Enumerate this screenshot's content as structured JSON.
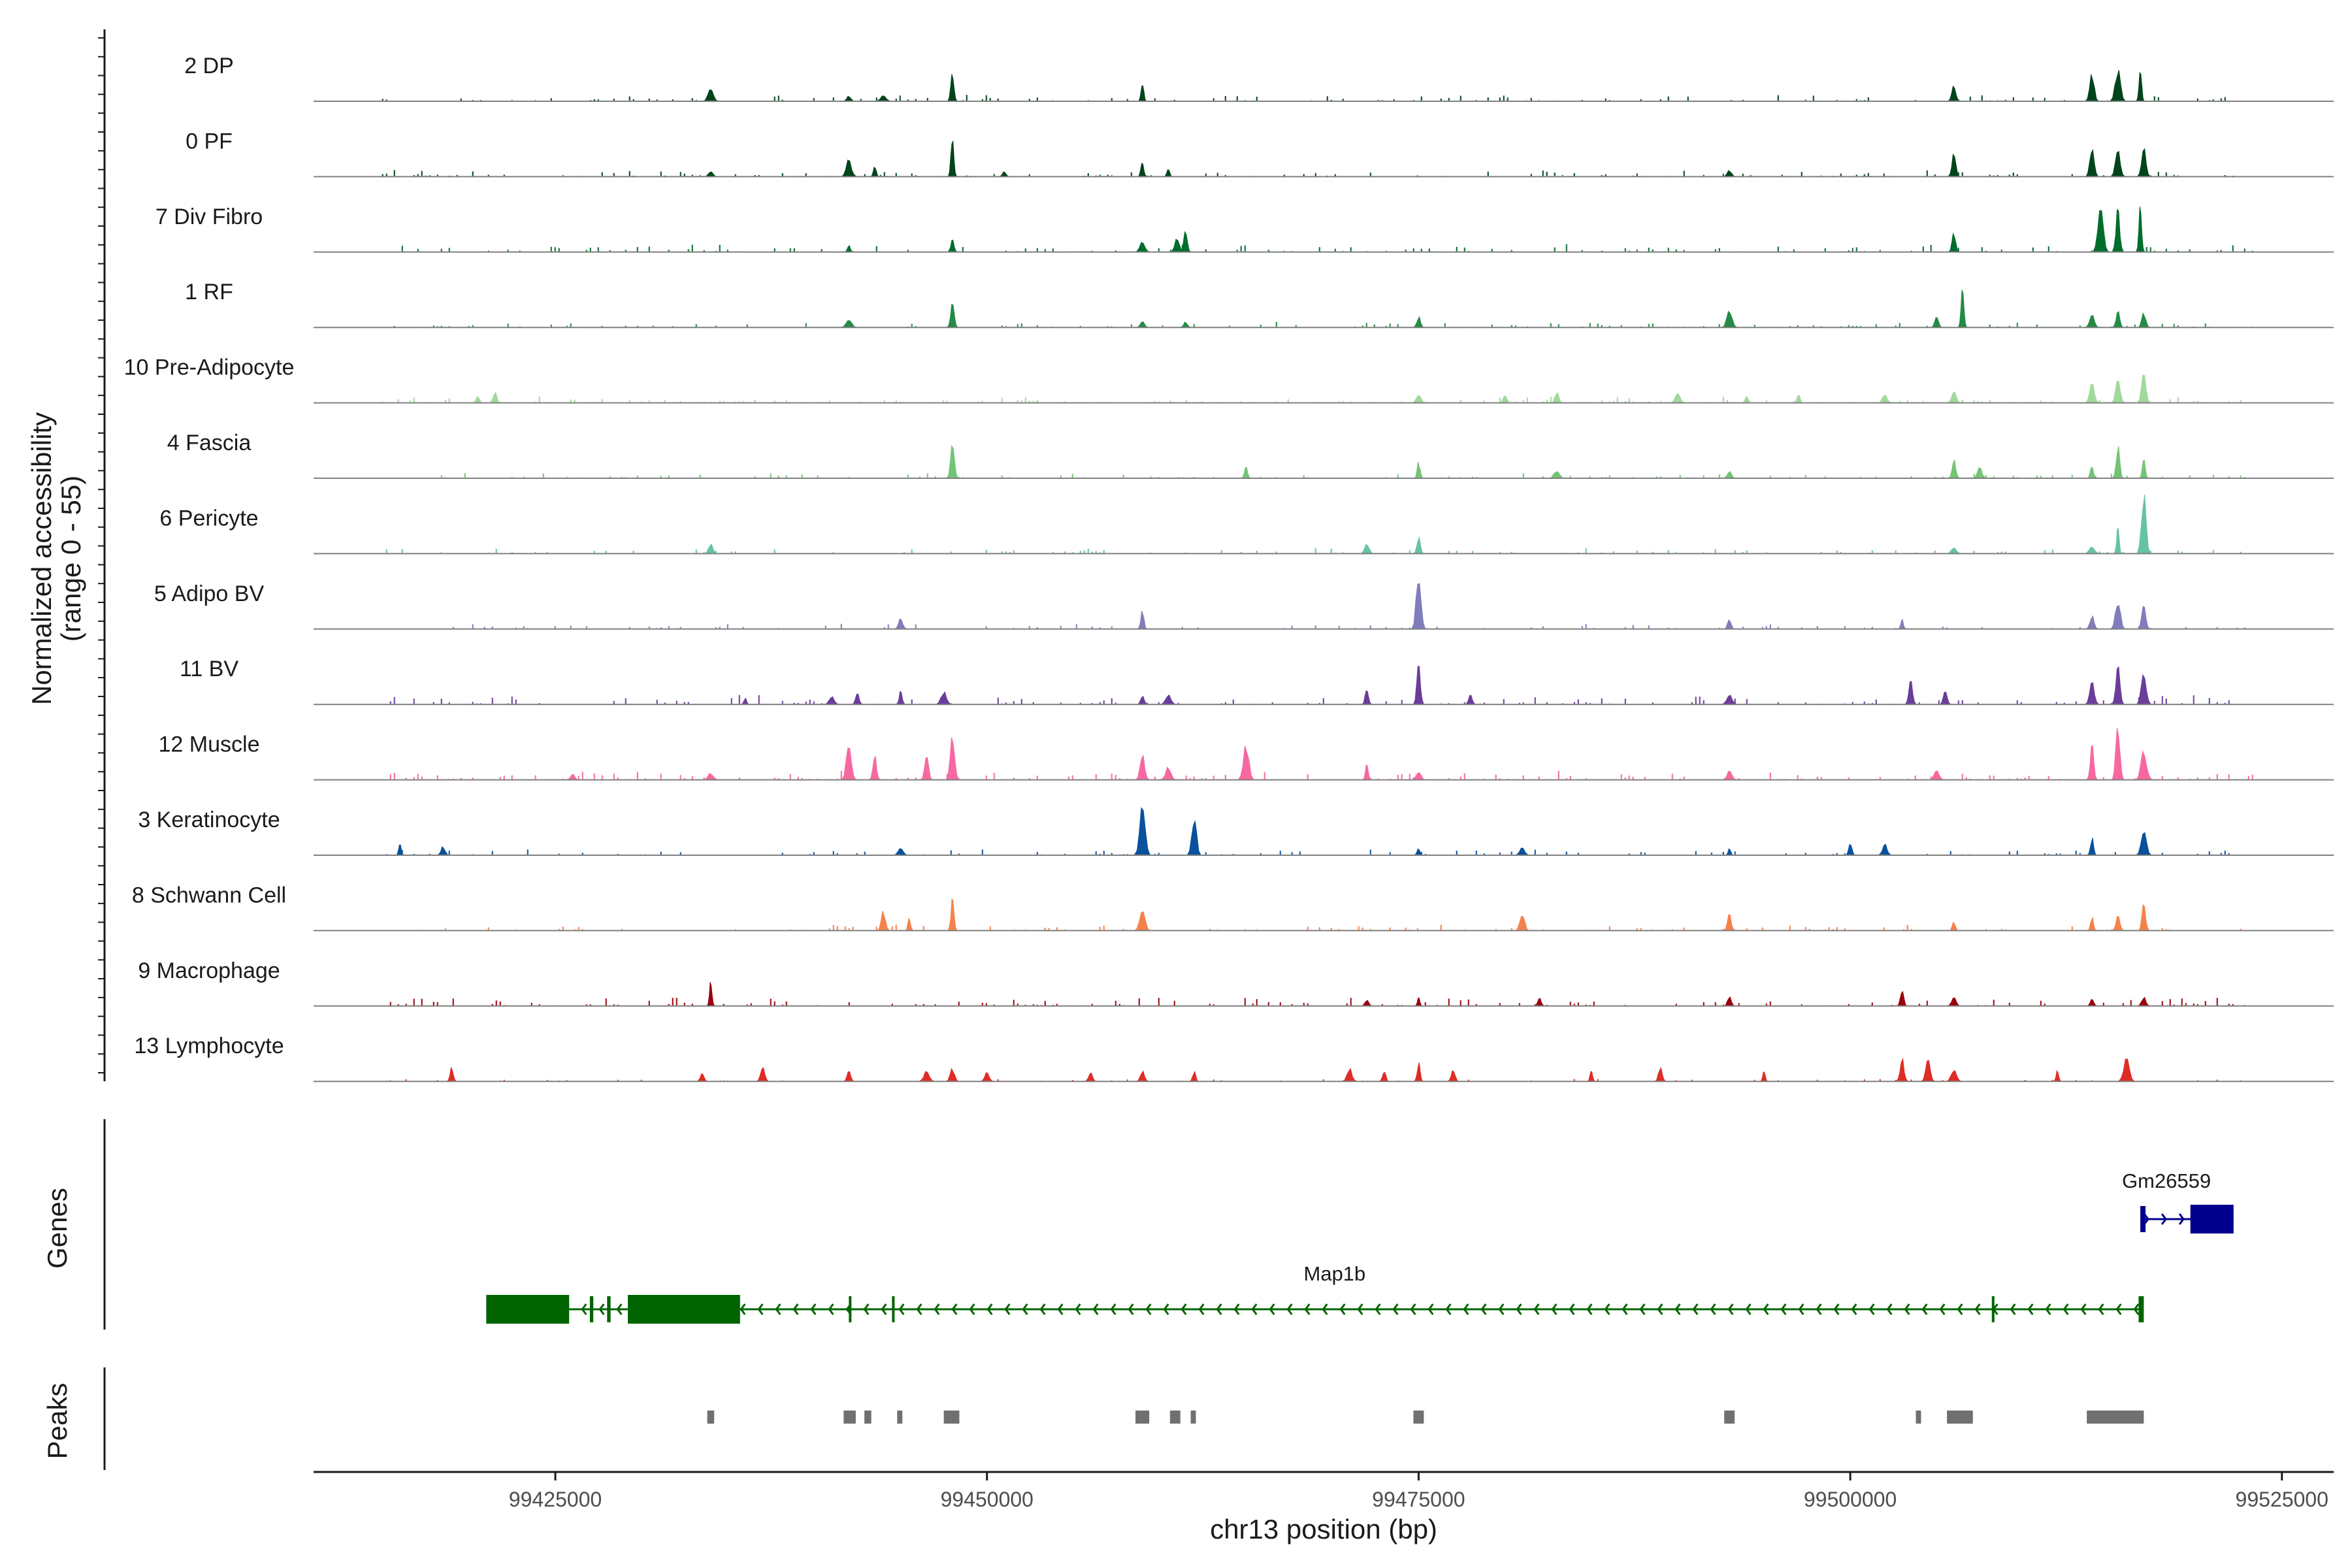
{
  "chart_data": {
    "type": "area",
    "title": "",
    "region": {
      "chrom": "chr13",
      "start": 99411000,
      "end": 99528000
    },
    "xlabel": "chr13 position (bp)",
    "ylabel_line1": "Normalized accessibility",
    "ylabel_line2": "(range 0 - 55)",
    "ylim": [
      0,
      55
    ],
    "x_ticks": [
      99425000,
      99450000,
      99475000,
      99500000,
      99525000
    ],
    "x_tick_labels": [
      "99425000",
      "99450000",
      "99475000",
      "99500000",
      "99525000"
    ],
    "panel_labels": {
      "genes": "Genes",
      "peaks": "Peaks"
    },
    "tracks": [
      {
        "name": "2 DP",
        "color": "#00441b",
        "baseline": 0.6,
        "peaks": [
          [
            99434000,
            12
          ],
          [
            99442000,
            5
          ],
          [
            99444000,
            6
          ],
          [
            99448000,
            28
          ],
          [
            99459000,
            18
          ],
          [
            99506000,
            15
          ],
          [
            99514000,
            25
          ],
          [
            99515500,
            30
          ],
          [
            99516800,
            28
          ]
        ]
      },
      {
        "name": "0 PF",
        "color": "#00441b",
        "baseline": 0.6,
        "peaks": [
          [
            99434000,
            5
          ],
          [
            99442000,
            16
          ],
          [
            99443500,
            10
          ],
          [
            99448000,
            38
          ],
          [
            99451000,
            5
          ],
          [
            99459000,
            13
          ],
          [
            99460500,
            8
          ],
          [
            99493000,
            6
          ],
          [
            99506000,
            22
          ],
          [
            99514000,
            30
          ],
          [
            99515500,
            24
          ],
          [
            99517000,
            26
          ]
        ]
      },
      {
        "name": "7 Div Fibro",
        "color": "#006d2c",
        "baseline": 0.8,
        "peaks": [
          [
            99442000,
            6
          ],
          [
            99448000,
            12
          ],
          [
            99459000,
            9
          ],
          [
            99461000,
            12
          ],
          [
            99461500,
            20
          ],
          [
            99506000,
            18
          ],
          [
            99514500,
            45
          ],
          [
            99515500,
            40
          ],
          [
            99516800,
            42
          ]
        ]
      },
      {
        "name": "1 RF",
        "color": "#238b45",
        "baseline": 0.4,
        "peaks": [
          [
            99442000,
            8
          ],
          [
            99448000,
            24
          ],
          [
            99459000,
            6
          ],
          [
            99461500,
            5
          ],
          [
            99475000,
            10
          ],
          [
            99493000,
            16
          ],
          [
            99505000,
            12
          ],
          [
            99506500,
            35
          ],
          [
            99514000,
            12
          ],
          [
            99515500,
            15
          ],
          [
            99517000,
            14
          ]
        ]
      },
      {
        "name": "10 Pre-Adipocyte",
        "color": "#a1d99b",
        "baseline": 0.5,
        "peaks": [
          [
            99420500,
            7
          ],
          [
            99421500,
            10
          ],
          [
            99475000,
            8
          ],
          [
            99480000,
            7
          ],
          [
            99483000,
            10
          ],
          [
            99490000,
            9
          ],
          [
            99494000,
            6
          ],
          [
            99497000,
            9
          ],
          [
            99502000,
            8
          ],
          [
            99506000,
            12
          ],
          [
            99514000,
            20
          ],
          [
            99515500,
            22
          ],
          [
            99517000,
            30
          ]
        ]
      },
      {
        "name": "4 Fascia",
        "color": "#74c476",
        "baseline": 0.4,
        "peaks": [
          [
            99448000,
            30
          ],
          [
            99465000,
            10
          ],
          [
            99475000,
            15
          ],
          [
            99483000,
            8
          ],
          [
            99493000,
            7
          ],
          [
            99506000,
            18
          ],
          [
            99507500,
            10
          ],
          [
            99514000,
            12
          ],
          [
            99515500,
            30
          ],
          [
            99517000,
            20
          ]
        ]
      },
      {
        "name": "6 Pericyte",
        "color": "#66c2a4",
        "baseline": 0.4,
        "peaks": [
          [
            99434000,
            9
          ],
          [
            99472000,
            10
          ],
          [
            99475000,
            15
          ],
          [
            99506000,
            6
          ],
          [
            99514000,
            6
          ],
          [
            99515500,
            24
          ],
          [
            99517000,
            55
          ]
        ]
      },
      {
        "name": "5 Adipo BV",
        "color": "#807dba",
        "baseline": 0.4,
        "peaks": [
          [
            99445000,
            10
          ],
          [
            99459000,
            18
          ],
          [
            99475000,
            55
          ],
          [
            99493000,
            10
          ],
          [
            99503000,
            9
          ],
          [
            99514000,
            12
          ],
          [
            99515500,
            28
          ],
          [
            99517000,
            26
          ]
        ]
      },
      {
        "name": "11 BV",
        "color": "#6a3d9a",
        "baseline": 1.0,
        "peaks": [
          [
            99436000,
            6
          ],
          [
            99441000,
            8
          ],
          [
            99442500,
            10
          ],
          [
            99445000,
            12
          ],
          [
            99447500,
            12
          ],
          [
            99459000,
            8
          ],
          [
            99460500,
            10
          ],
          [
            99472000,
            16
          ],
          [
            99475000,
            40
          ],
          [
            99478000,
            10
          ],
          [
            99493000,
            10
          ],
          [
            99503500,
            22
          ],
          [
            99505500,
            14
          ],
          [
            99514000,
            24
          ],
          [
            99515500,
            35
          ],
          [
            99517000,
            30
          ]
        ]
      },
      {
        "name": "12 Muscle",
        "color": "#f768a1",
        "baseline": 1.0,
        "peaks": [
          [
            99426000,
            5
          ],
          [
            99434000,
            6
          ],
          [
            99442000,
            35
          ],
          [
            99443500,
            22
          ],
          [
            99446500,
            22
          ],
          [
            99448000,
            40
          ],
          [
            99459000,
            25
          ],
          [
            99460500,
            12
          ],
          [
            99465000,
            35
          ],
          [
            99472000,
            18
          ],
          [
            99475000,
            8
          ],
          [
            99493000,
            8
          ],
          [
            99505000,
            10
          ],
          [
            99514000,
            35
          ],
          [
            99515500,
            55
          ],
          [
            99517000,
            30
          ]
        ]
      },
      {
        "name": "3 Keratinocyte",
        "color": "#08519c",
        "baseline": 0.5,
        "peaks": [
          [
            99416000,
            10
          ],
          [
            99418500,
            8
          ],
          [
            99445000,
            6
          ],
          [
            99459000,
            50
          ],
          [
            99462000,
            38
          ],
          [
            99475000,
            6
          ],
          [
            99481000,
            8
          ],
          [
            99493000,
            6
          ],
          [
            99500000,
            12
          ],
          [
            99502000,
            10
          ],
          [
            99514000,
            16
          ],
          [
            99517000,
            22
          ]
        ]
      },
      {
        "name": "8 Schwann Cell",
        "color": "#f4824b",
        "baseline": 0.5,
        "peaks": [
          [
            99444000,
            18
          ],
          [
            99445500,
            12
          ],
          [
            99448000,
            30
          ],
          [
            99459000,
            18
          ],
          [
            99481000,
            16
          ],
          [
            99493000,
            15
          ],
          [
            99506000,
            8
          ],
          [
            99514000,
            12
          ],
          [
            99515500,
            14
          ],
          [
            99517000,
            26
          ]
        ]
      },
      {
        "name": "9 Macrophage",
        "color": "#99000d",
        "baseline": 1.0,
        "peaks": [
          [
            99434000,
            22
          ],
          [
            99472000,
            6
          ],
          [
            99475000,
            8
          ],
          [
            99482000,
            8
          ],
          [
            99493000,
            9
          ],
          [
            99503000,
            14
          ],
          [
            99506000,
            8
          ],
          [
            99514000,
            6
          ],
          [
            99517000,
            8
          ]
        ]
      },
      {
        "name": "13 Lymphocyte",
        "color": "#de2d26",
        "baseline": 0.0,
        "peaks": [
          [
            99419000,
            14
          ],
          [
            99433500,
            8
          ],
          [
            99437000,
            14
          ],
          [
            99442000,
            10
          ],
          [
            99446500,
            10
          ],
          [
            99448000,
            12
          ],
          [
            99450000,
            9
          ],
          [
            99456000,
            9
          ],
          [
            99459000,
            10
          ],
          [
            99462000,
            9
          ],
          [
            99471000,
            12
          ],
          [
            99473000,
            10
          ],
          [
            99475000,
            18
          ],
          [
            99477000,
            10
          ],
          [
            99485000,
            10
          ],
          [
            99489000,
            14
          ],
          [
            99495000,
            10
          ],
          [
            99503000,
            22
          ],
          [
            99504500,
            20
          ],
          [
            99506000,
            10
          ],
          [
            99512000,
            10
          ],
          [
            99516000,
            24
          ]
        ]
      }
    ],
    "genes": [
      {
        "name": "Gm26559",
        "strand": "+",
        "color": "#00008b",
        "start": 99516800,
        "end": 99522200,
        "exons": [
          [
            99516800,
            99517100
          ],
          [
            99519700,
            99522200
          ]
        ]
      },
      {
        "name": "Map1b",
        "strand": "-",
        "color": "#006400",
        "start": 99421000,
        "end": 99517000,
        "exons": [
          [
            99421000,
            99425800
          ],
          [
            99427000,
            99427200
          ],
          [
            99428000,
            99428200
          ],
          [
            99429200,
            99435700
          ],
          [
            99442000,
            99442150
          ],
          [
            99444500,
            99444650
          ],
          [
            99508200,
            99508350
          ],
          [
            99516700,
            99517000
          ]
        ]
      }
    ],
    "peak_regions": [
      [
        99433800,
        99434200
      ],
      [
        99441700,
        99442400
      ],
      [
        99442900,
        99443300
      ],
      [
        99444800,
        99445100
      ],
      [
        99447500,
        99448400
      ],
      [
        99458600,
        99459400
      ],
      [
        99460600,
        99461200
      ],
      [
        99461800,
        99462100
      ],
      [
        99474700,
        99475300
      ],
      [
        99492700,
        99493300
      ],
      [
        99503800,
        99504100
      ],
      [
        99505600,
        99507100
      ],
      [
        99513700,
        99517000
      ]
    ]
  }
}
